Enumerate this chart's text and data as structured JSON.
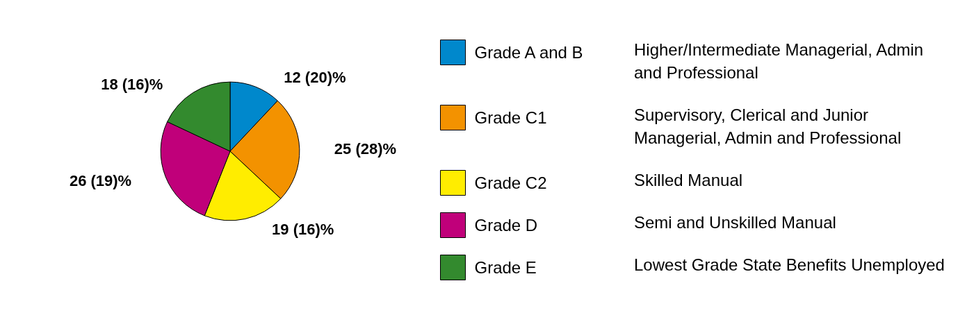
{
  "chart_data": {
    "type": "pie",
    "categories": [
      "Grade A and B",
      "Grade C1",
      "Grade C2",
      "Grade D",
      "Grade E"
    ],
    "values": [
      12,
      25,
      19,
      26,
      18
    ],
    "value_labels": [
      "12 (20)%",
      "25 (28)%",
      "19 (16)%",
      "26 (19)%",
      "18 (16)%"
    ],
    "colors": [
      "#0088cc",
      "#f39200",
      "#ffed00",
      "#c0007a",
      "#338a2e"
    ],
    "legend": "right",
    "annotations": [
      "Higher/Intermediate Managerial, Admin and Professional",
      "Supervisory, Clerical and Junior Managerial, Admin and Professional",
      "Skilled Manual",
      "Semi and Unskilled Manual",
      "Lowest Grade State Benefits Unemployed"
    ]
  }
}
